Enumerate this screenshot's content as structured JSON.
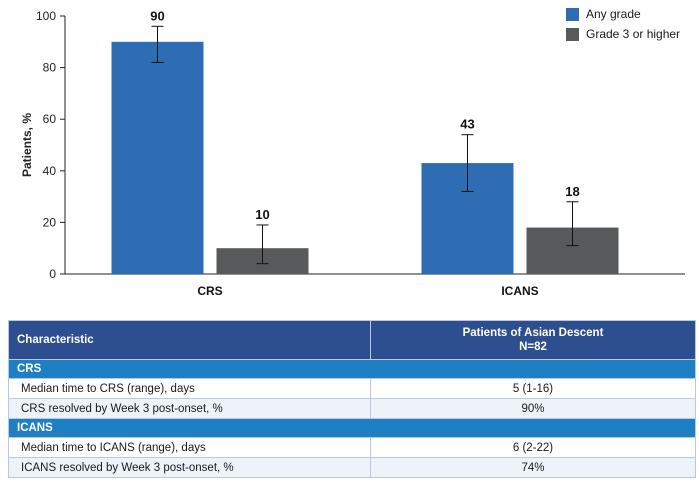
{
  "chart_data": {
    "type": "bar",
    "categories": [
      "CRS",
      "ICANS"
    ],
    "ylabel": "Patients, %",
    "ylim": [
      0,
      100
    ],
    "yticks": [
      0,
      20,
      40,
      60,
      80,
      100
    ],
    "series": [
      {
        "name": "Any grade",
        "color": "#2e6db4",
        "values": [
          90,
          43
        ],
        "error_low": [
          82,
          32
        ],
        "error_high": [
          96,
          54
        ]
      },
      {
        "name": "Grade 3 or higher",
        "color": "#58595b",
        "values": [
          10,
          18
        ],
        "error_low": [
          4,
          11
        ],
        "error_high": [
          19,
          28
        ]
      }
    ]
  },
  "table": {
    "header": {
      "col1": "Characteristic",
      "col2_line1": "Patients of Asian Descent",
      "col2_line2": "N=82"
    },
    "sections": [
      {
        "title": "CRS",
        "rows": [
          {
            "label": "Median time to CRS (range), days",
            "value": "5 (1-16)"
          },
          {
            "label": "CRS resolved by Week 3 post-onset, %",
            "value": "90%"
          }
        ]
      },
      {
        "title": "ICANS",
        "rows": [
          {
            "label": "Median time to ICANS (range), days",
            "value": "6 (2-22)"
          },
          {
            "label": "ICANS resolved by Week 3 post-onset, %",
            "value": "74%"
          }
        ]
      }
    ]
  }
}
